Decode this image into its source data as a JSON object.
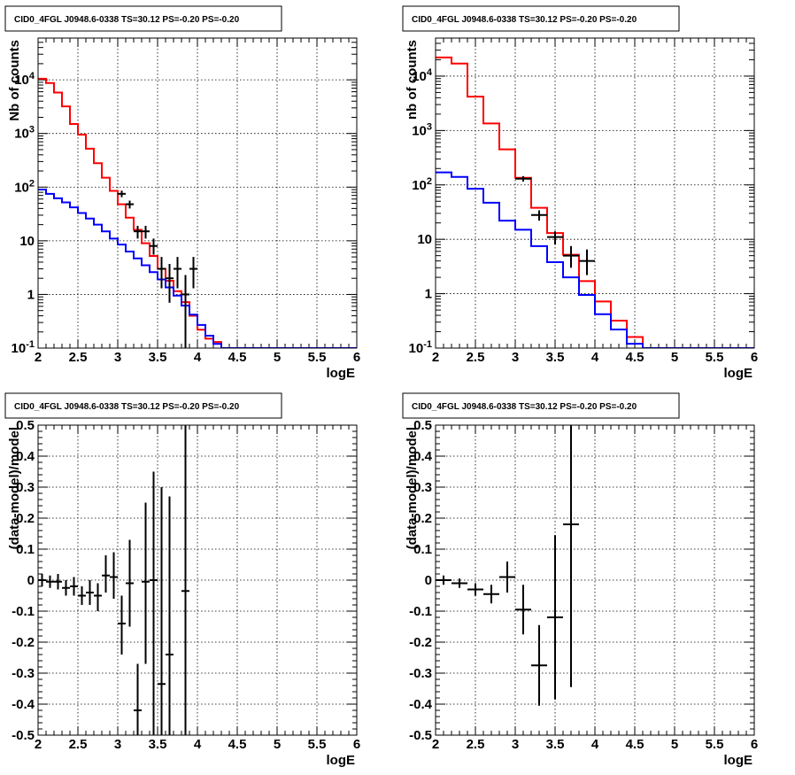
{
  "chart_data": [
    {
      "type": "step",
      "title": "CID0_4FGL J0948.6-0338 TS=30.12 PS=-0.20 PS=-0.20",
      "xlabel": "logE",
      "ylabel": "Nb of counts",
      "yscale": "log",
      "xlim": [
        2,
        6
      ],
      "ylim": [
        0.1,
        60000
      ],
      "grid": true,
      "xticks": [
        "2",
        "2.5",
        "3",
        "3.5",
        "4",
        "4.5",
        "5",
        "5.5",
        "6"
      ],
      "yticks": [
        "10^-1",
        "1",
        "10",
        "10^2",
        "10^3",
        "10^4"
      ],
      "bin_edges": [
        2.0,
        2.1,
        2.2,
        2.3,
        2.4,
        2.5,
        2.6,
        2.7,
        2.8,
        2.9,
        3.0,
        3.1,
        3.2,
        3.3,
        3.4,
        3.5,
        3.6,
        3.7,
        3.8,
        3.9,
        4.0,
        4.1,
        4.2,
        4.3,
        4.4,
        4.5,
        4.6,
        4.7,
        4.8,
        4.9,
        5.0,
        5.1,
        5.2,
        5.3,
        5.4,
        5.5,
        5.6,
        5.7,
        5.8,
        5.9,
        6.0
      ],
      "series": [
        {
          "color": "#ff0000",
          "values": [
            10500,
            8700,
            5800,
            3200,
            1500,
            950,
            520,
            280,
            150,
            85,
            48,
            27,
            16,
            9,
            5.2,
            3.0,
            1.8,
            1.15,
            0.72,
            0.4,
            0.22,
            0.15,
            0.13,
            0.1,
            0.1,
            0.1,
            0.1,
            0.1,
            0.1,
            0.1,
            0.1,
            0.1,
            0.1,
            0.1,
            0.1,
            0.1,
            0.1,
            0.1,
            0.1,
            0.1
          ]
        },
        {
          "color": "#0000ff",
          "values": [
            90,
            75,
            62,
            52,
            42,
            33,
            26,
            20,
            15,
            11,
            8.5,
            6.3,
            4.7,
            3.5,
            2.6,
            1.9,
            1.35,
            0.95,
            0.62,
            0.42,
            0.27,
            0.17,
            0.12,
            0.1,
            0.1,
            0.1,
            0.1,
            0.1,
            0.1,
            0.1,
            0.1,
            0.1,
            0.1,
            0.1,
            0.1,
            0.1,
            0.1,
            0.1,
            0.1,
            0.1
          ]
        }
      ],
      "points": [
        {
          "x": 3.05,
          "y": 75,
          "xerr": 0.05,
          "ylo": 65,
          "yhi": 86
        },
        {
          "x": 3.15,
          "y": 48,
          "xerr": 0.05,
          "ylo": 40,
          "yhi": 56
        },
        {
          "x": 3.25,
          "y": 15,
          "xerr": 0.05,
          "ylo": 11,
          "yhi": 19
        },
        {
          "x": 3.35,
          "y": 15,
          "xerr": 0.05,
          "ylo": 11,
          "yhi": 19
        },
        {
          "x": 3.45,
          "y": 8,
          "xerr": 0.05,
          "ylo": 5.5,
          "yhi": 11
        },
        {
          "x": 3.55,
          "y": 3,
          "xerr": 0.05,
          "ylo": 1.3,
          "yhi": 5
        },
        {
          "x": 3.65,
          "y": 2,
          "xerr": 0.05,
          "ylo": 0.7,
          "yhi": 3.7
        },
        {
          "x": 3.75,
          "y": 3,
          "xerr": 0.05,
          "ylo": 1.3,
          "yhi": 5
        },
        {
          "x": 3.85,
          "y": 1,
          "xerr": 0.05,
          "ylo": 0.1,
          "yhi": 2.3
        },
        {
          "x": 3.95,
          "y": 3,
          "xerr": 0.05,
          "ylo": 1.3,
          "yhi": 5
        }
      ]
    },
    {
      "type": "step",
      "title": "CID0_4FGL J0948.6-0338 TS=30.12 PS=-0.20 PS=-0.20",
      "xlabel": "logE",
      "ylabel": "nb of counts",
      "yscale": "log",
      "xlim": [
        2,
        6
      ],
      "ylim": [
        0.1,
        50000
      ],
      "grid": true,
      "xticks": [
        "2",
        "2.5",
        "3",
        "3.5",
        "4",
        "4.5",
        "5",
        "5.5",
        "6"
      ],
      "yticks": [
        "10^-1",
        "1",
        "10",
        "10^2",
        "10^3",
        "10^4"
      ],
      "bin_edges": [
        2.0,
        2.2,
        2.4,
        2.6,
        2.8,
        3.0,
        3.2,
        3.4,
        3.6,
        3.8,
        4.0,
        4.2,
        4.4,
        4.6,
        4.8,
        5.0,
        5.2,
        5.4,
        5.6,
        5.8,
        6.0
      ],
      "series": [
        {
          "color": "#ff0000",
          "values": [
            22000,
            17000,
            4200,
            1350,
            450,
            135,
            38,
            13,
            5.2,
            1.7,
            0.72,
            0.32,
            0.16,
            0.1,
            0.1,
            0.1,
            0.1,
            0.1,
            0.1,
            0.1
          ]
        },
        {
          "color": "#0000ff",
          "values": [
            170,
            140,
            85,
            47,
            22,
            15,
            7.5,
            3.8,
            2.0,
            0.95,
            0.42,
            0.22,
            0.12,
            0.1,
            0.1,
            0.1,
            0.1,
            0.1,
            0.1,
            0.1
          ]
        }
      ],
      "points": [
        {
          "x": 3.1,
          "y": 130,
          "xerr": 0.1,
          "ylo": 115,
          "yhi": 145
        },
        {
          "x": 3.3,
          "y": 28,
          "xerr": 0.1,
          "ylo": 22,
          "yhi": 34
        },
        {
          "x": 3.5,
          "y": 11,
          "xerr": 0.1,
          "ylo": 8,
          "yhi": 14
        },
        {
          "x": 3.7,
          "y": 5,
          "xerr": 0.1,
          "ylo": 3,
          "yhi": 7.5
        },
        {
          "x": 3.9,
          "y": 4,
          "xerr": 0.1,
          "ylo": 2.2,
          "yhi": 6.5
        }
      ]
    },
    {
      "type": "errorbar",
      "title": "CID0_4FGL J0948.6-0338 TS=30.12 PS=-0.20 PS=-0.20",
      "xlabel": "logE",
      "ylabel": "(data-model)/model",
      "xlim": [
        2,
        6
      ],
      "ylim": [
        -0.5,
        0.5
      ],
      "grid": true,
      "xticks": [
        "2",
        "2.5",
        "3",
        "3.5",
        "4",
        "4.5",
        "5",
        "5.5",
        "6"
      ],
      "yticks": [
        "-0.5",
        "-0.4",
        "-0.3",
        "-0.2",
        "-0.1",
        "0",
        "0.1",
        "0.2",
        "0.3",
        "0.4",
        "0.5"
      ],
      "points": [
        {
          "x": 2.05,
          "y": 0.0,
          "xerr": 0.05,
          "ylo": -0.02,
          "yhi": 0.02
        },
        {
          "x": 2.15,
          "y": -0.005,
          "xerr": 0.05,
          "ylo": -0.025,
          "yhi": 0.015
        },
        {
          "x": 2.25,
          "y": -0.005,
          "xerr": 0.05,
          "ylo": -0.03,
          "yhi": 0.02
        },
        {
          "x": 2.35,
          "y": -0.025,
          "xerr": 0.05,
          "ylo": -0.05,
          "yhi": 0.0
        },
        {
          "x": 2.45,
          "y": -0.02,
          "xerr": 0.05,
          "ylo": -0.05,
          "yhi": 0.01
        },
        {
          "x": 2.55,
          "y": -0.05,
          "xerr": 0.05,
          "ylo": -0.08,
          "yhi": -0.02
        },
        {
          "x": 2.65,
          "y": -0.04,
          "xerr": 0.05,
          "ylo": -0.08,
          "yhi": 0.0
        },
        {
          "x": 2.75,
          "y": -0.05,
          "xerr": 0.05,
          "ylo": -0.1,
          "yhi": -0.01
        },
        {
          "x": 2.85,
          "y": 0.015,
          "xerr": 0.05,
          "ylo": -0.04,
          "yhi": 0.08
        },
        {
          "x": 2.95,
          "y": 0.01,
          "xerr": 0.05,
          "ylo": -0.06,
          "yhi": 0.09
        },
        {
          "x": 3.05,
          "y": -0.14,
          "xerr": 0.05,
          "ylo": -0.24,
          "yhi": -0.05
        },
        {
          "x": 3.15,
          "y": -0.01,
          "xerr": 0.05,
          "ylo": -0.15,
          "yhi": 0.13
        },
        {
          "x": 3.25,
          "y": -0.42,
          "xerr": 0.05,
          "ylo": -0.5,
          "yhi": -0.27
        },
        {
          "x": 3.35,
          "y": -0.005,
          "xerr": 0.05,
          "ylo": -0.27,
          "yhi": 0.25
        },
        {
          "x": 3.45,
          "y": 0.0,
          "xerr": 0.05,
          "ylo": -0.5,
          "yhi": 0.35
        },
        {
          "x": 3.55,
          "y": -0.335,
          "xerr": 0.05,
          "ylo": -0.5,
          "yhi": 0.3
        },
        {
          "x": 3.65,
          "y": -0.24,
          "xerr": 0.05,
          "ylo": -0.5,
          "yhi": 0.27
        },
        {
          "x": 3.85,
          "y": -0.035,
          "xerr": 0.05,
          "ylo": -0.5,
          "yhi": 0.5
        }
      ]
    },
    {
      "type": "errorbar",
      "title": "CID0_4FGL J0948.6-0338 TS=30.12 PS=-0.20 PS=-0.20",
      "xlabel": "logE",
      "ylabel": "(data-model)/model",
      "xlim": [
        2,
        6
      ],
      "ylim": [
        -0.5,
        0.5
      ],
      "grid": true,
      "xticks": [
        "2",
        "2.5",
        "3",
        "3.5",
        "4",
        "4.5",
        "5",
        "5.5",
        "6"
      ],
      "yticks": [
        "-0.5",
        "-0.4",
        "-0.3",
        "-0.2",
        "-0.1",
        "0",
        "0.1",
        "0.2",
        "0.3",
        "0.4",
        "0.5"
      ],
      "points": [
        {
          "x": 2.1,
          "y": 0.0,
          "xerr": 0.1,
          "ylo": -0.015,
          "yhi": 0.015
        },
        {
          "x": 2.3,
          "y": -0.01,
          "xerr": 0.1,
          "ylo": -0.025,
          "yhi": 0.005
        },
        {
          "x": 2.5,
          "y": -0.03,
          "xerr": 0.1,
          "ylo": -0.05,
          "yhi": -0.01
        },
        {
          "x": 2.7,
          "y": -0.045,
          "xerr": 0.1,
          "ylo": -0.075,
          "yhi": -0.015
        },
        {
          "x": 2.9,
          "y": 0.01,
          "xerr": 0.1,
          "ylo": -0.04,
          "yhi": 0.06
        },
        {
          "x": 3.1,
          "y": -0.095,
          "xerr": 0.1,
          "ylo": -0.175,
          "yhi": -0.015
        },
        {
          "x": 3.3,
          "y": -0.275,
          "xerr": 0.1,
          "ylo": -0.405,
          "yhi": -0.145
        },
        {
          "x": 3.5,
          "y": -0.12,
          "xerr": 0.1,
          "ylo": -0.385,
          "yhi": 0.145
        },
        {
          "x": 3.7,
          "y": 0.18,
          "xerr": 0.1,
          "ylo": -0.345,
          "yhi": 0.5
        }
      ]
    }
  ]
}
